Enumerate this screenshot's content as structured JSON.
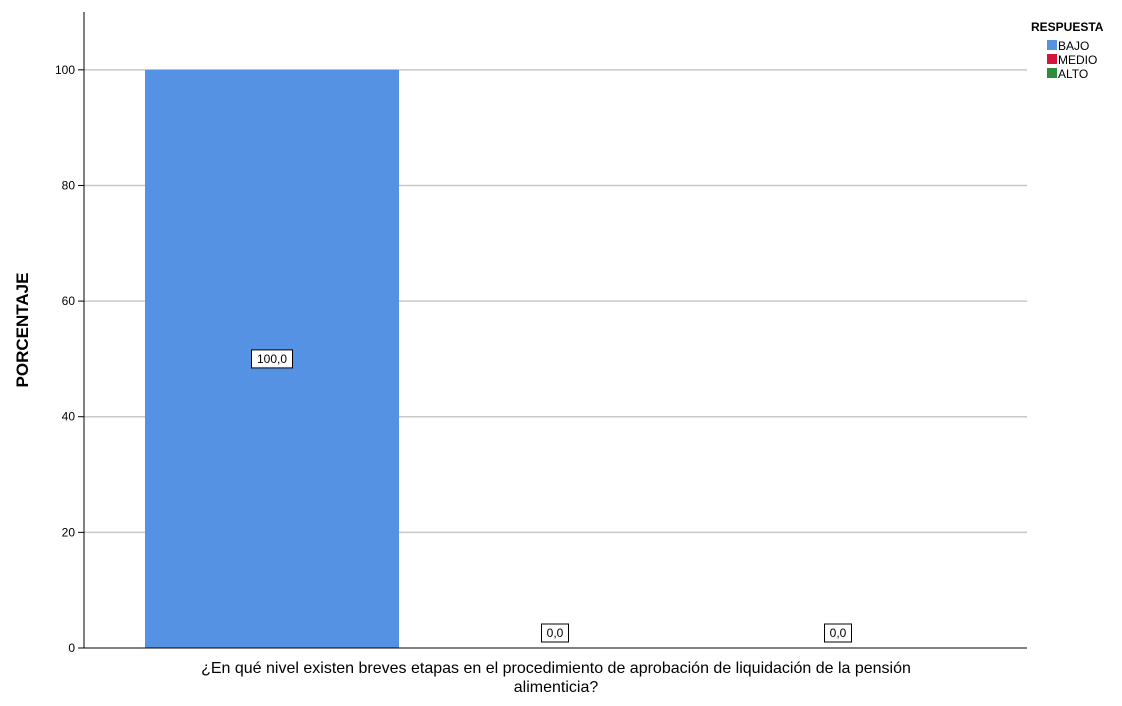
{
  "chart_data": {
    "type": "bar",
    "categories": [
      "BAJO",
      "MEDIO",
      "ALTO"
    ],
    "values": [
      100.0,
      0.0,
      0.0
    ],
    "data_labels": [
      "100,0",
      "0,0",
      "0,0"
    ],
    "colors": [
      "#5592e4",
      "#d2173f",
      "#2e8b3a"
    ],
    "xlabel_lines": [
      "¿En qué nivel existen breves etapas en el procedimiento de aprobación de liquidación de la pensión",
      "alimenticia?"
    ],
    "ylabel": "PORCENTAJE",
    "ylim": [
      0,
      110
    ],
    "yticks": [
      0,
      20,
      40,
      60,
      80,
      100
    ],
    "grid": true,
    "legend": {
      "title": "RESPUESTA",
      "position": "top-right",
      "entries": [
        "BAJO",
        "MEDIO",
        "ALTO"
      ]
    }
  }
}
